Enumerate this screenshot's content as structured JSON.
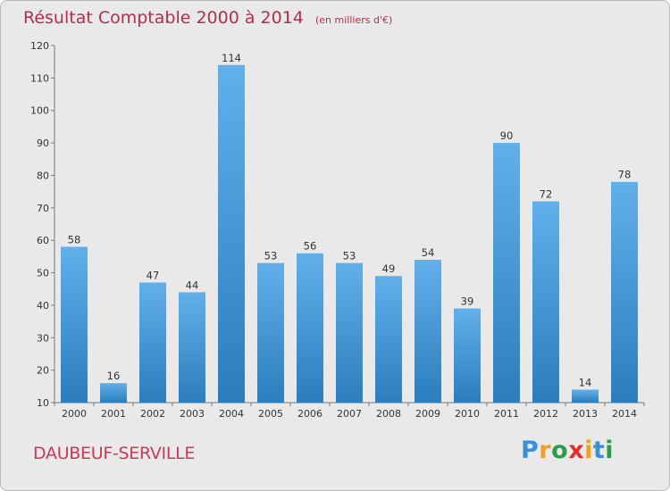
{
  "header": {
    "title": "Résultat Comptable 2000 à 2014",
    "unit_note": "(en milliers d'€)"
  },
  "footer": {
    "commune": "DAUBEUF-SERVILLE",
    "logo": "Proxiti"
  },
  "colors": {
    "bar_top": "#62b0ea",
    "bar_bottom": "#2b7dbd",
    "title": "#b0304d",
    "background": "#e9e9e9"
  },
  "chart_data": {
    "type": "bar",
    "categories": [
      "2000",
      "2001",
      "2002",
      "2003",
      "2004",
      "2005",
      "2006",
      "2007",
      "2008",
      "2009",
      "2010",
      "2011",
      "2012",
      "2013",
      "2014"
    ],
    "values": [
      58,
      16,
      47,
      44,
      114,
      53,
      56,
      53,
      49,
      54,
      39,
      90,
      72,
      14,
      78
    ],
    "title": "Résultat Comptable 2000 à 2014",
    "ylabel": "",
    "xlabel": "",
    "ylim": [
      10,
      120
    ],
    "yticks": [
      10,
      20,
      30,
      40,
      50,
      60,
      70,
      80,
      90,
      100,
      110,
      120
    ],
    "grid": false,
    "data_labels": true
  }
}
